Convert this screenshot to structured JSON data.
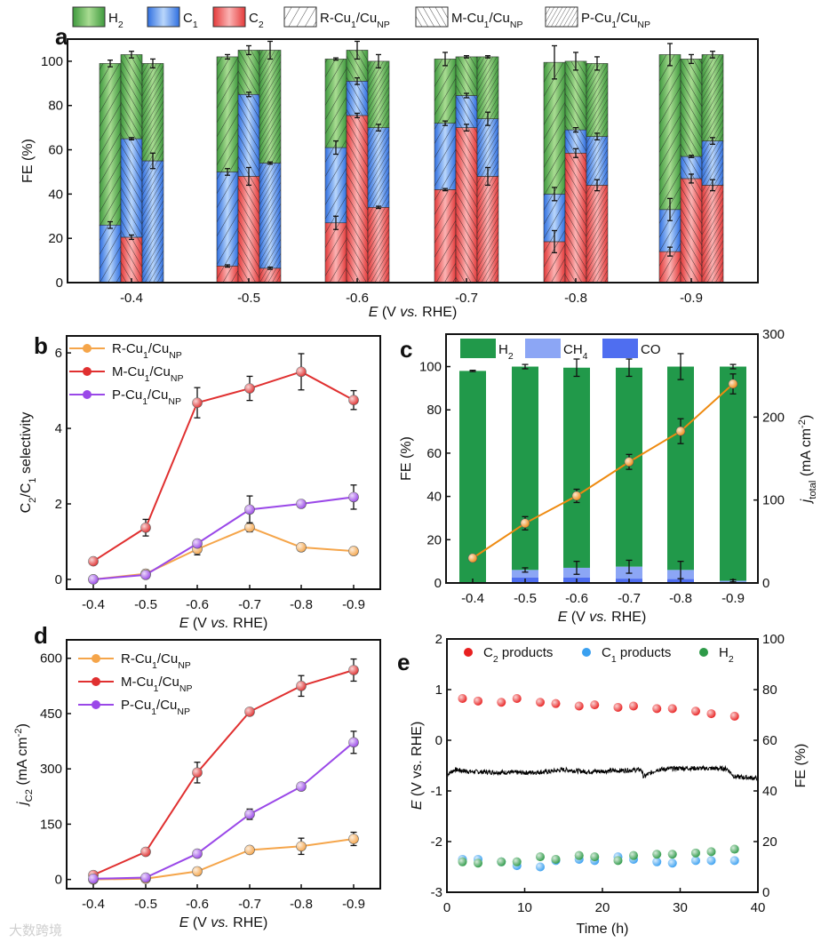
{
  "colors": {
    "H2": "#4ea64a",
    "C1": "#3f7fe0",
    "C2": "#ec4b4b",
    "R": "#f5a54a",
    "M": "#e03030",
    "P": "#9a48e8",
    "c_H2": "#21994a",
    "c_CH4": "#8ca6f5",
    "c_CO": "#4f6ef0",
    "c_line": "#ee8a10",
    "e_C2": "#e82020",
    "e_C1": "#3aa0f0",
    "e_H2": "#2e9a48"
  },
  "watermark": "大数跨境",
  "chart_data": [
    {
      "panel": "a",
      "type": "bar",
      "legend": [
        "H_{2}",
        "C_{1}",
        "C_{2}",
        "R-Cu_{1}/Cu_{NP}",
        "M-Cu_{1}/Cu_{NP}",
        "P-Cu_{1}/Cu_{NP}"
      ],
      "categories": [
        "-0.4",
        "-0.5",
        "-0.6",
        "-0.7",
        "-0.8",
        "-0.9"
      ],
      "xlabel": "E (V vs. RHE)",
      "ylabel": "FE (%)",
      "ylim": [
        0,
        110
      ],
      "yticks": [
        0,
        20,
        40,
        60,
        80,
        100
      ],
      "series": [
        {
          "name": "R-Cu_{1}/Cu_{NP}",
          "C2": [
            0,
            7.5,
            27,
            42,
            18.5,
            14
          ],
          "C1": [
            26,
            42.5,
            34,
            30,
            21.5,
            19
          ],
          "H2": [
            73,
            52,
            40,
            29,
            59.5,
            70
          ],
          "err_C2": [
            0,
            0.5,
            3,
            0.5,
            5,
            2
          ],
          "err_C1": [
            1.5,
            1.5,
            3,
            1,
            3,
            5
          ],
          "err_total": [
            1.5,
            1,
            0.5,
            3,
            7.5,
            5
          ]
        },
        {
          "name": "M-Cu_{1}/Cu_{NP}",
          "C2": [
            20.5,
            48,
            75.5,
            70,
            58.5,
            47
          ],
          "C1": [
            44.5,
            37,
            15.5,
            14.5,
            10.5,
            10
          ],
          "H2": [
            38,
            20,
            14,
            17.5,
            31,
            44
          ],
          "err_C2": [
            1,
            4,
            1,
            1.5,
            2,
            2
          ],
          "err_C1": [
            0.5,
            1,
            1.5,
            1,
            1,
            0.5
          ],
          "err_total": [
            1.5,
            2,
            4,
            0.5,
            4,
            2
          ]
        },
        {
          "name": "P-Cu_{1}/Cu_{NP}",
          "C2": [
            0,
            6.5,
            34,
            48,
            44,
            44
          ],
          "C1": [
            55,
            47.5,
            36,
            26,
            22,
            20
          ],
          "H2": [
            44,
            51,
            30,
            28,
            33,
            39
          ],
          "err_C2": [
            0,
            0.5,
            0.5,
            4,
            2.5,
            2.5
          ],
          "err_C1": [
            3.5,
            0.5,
            1.5,
            3,
            1.5,
            1.5
          ],
          "err_total": [
            2,
            4,
            3,
            0.5,
            3,
            1.5
          ]
        }
      ]
    },
    {
      "panel": "b",
      "type": "line",
      "x": [
        -0.4,
        -0.5,
        -0.6,
        -0.7,
        -0.8,
        -0.9
      ],
      "xticks": [
        "-0.4",
        "-0.5",
        "-0.6",
        "-0.7",
        "-0.8",
        "-0.9"
      ],
      "xlabel": "E (V vs. RHE)",
      "ylabel": "C_{2}/C_{1} selectivity",
      "ylim": [
        -0.26,
        6.45
      ],
      "yticks": [
        0,
        2,
        4,
        6
      ],
      "series": [
        {
          "name": "R-Cu_{1}/Cu_{NP}",
          "values": [
            0,
            0.15,
            0.8,
            1.38,
            0.85,
            0.75
          ],
          "err": [
            0.05,
            0.1,
            0.15,
            0.12,
            0.1,
            0.1
          ]
        },
        {
          "name": "M-Cu_{1}/Cu_{NP}",
          "values": [
            0.48,
            1.37,
            4.68,
            5.06,
            5.5,
            4.75
          ],
          "err": [
            0.08,
            0.22,
            0.4,
            0.32,
            0.48,
            0.25
          ]
        },
        {
          "name": "P-Cu_{1}/Cu_{NP}",
          "values": [
            0,
            0.12,
            0.95,
            1.85,
            2.0,
            2.18
          ],
          "err": [
            0.03,
            0.08,
            0.08,
            0.36,
            0.06,
            0.32
          ]
        }
      ]
    },
    {
      "panel": "c",
      "type": "bar",
      "categories": [
        "-0.4",
        "-0.5",
        "-0.6",
        "-0.7",
        "-0.8",
        "-0.9"
      ],
      "legend": [
        "H_{2}",
        "CH_{4}",
        "CO"
      ],
      "xlabel": "E (V vs. RHE)",
      "ylabel": "FE (%)",
      "ylim": [
        0,
        115
      ],
      "yticks": [
        0,
        20,
        40,
        60,
        80,
        100
      ],
      "y2label": "j_{total} (mA cm^{-2})",
      "y2lim": [
        0,
        300
      ],
      "y2ticks": [
        0,
        100,
        200,
        300
      ],
      "CO": [
        0,
        2.5,
        2.5,
        2,
        1.8,
        0.3
      ],
      "CH4": [
        0,
        3.5,
        4.5,
        5.5,
        4.2,
        0.7
      ],
      "H2": [
        98,
        94,
        92.5,
        92,
        94,
        99
      ],
      "err_total": [
        0.3,
        1,
        4,
        4,
        6,
        1
      ],
      "err_CH4": [
        0,
        1,
        3,
        3,
        4,
        0.5
      ],
      "j_total": [
        30,
        72,
        105,
        146,
        183,
        240
      ],
      "err_j": [
        3,
        8,
        8,
        9,
        15,
        12
      ]
    },
    {
      "panel": "d",
      "type": "line",
      "x": [
        -0.4,
        -0.5,
        -0.6,
        -0.7,
        -0.8,
        -0.9
      ],
      "xticks": [
        "-0.4",
        "-0.5",
        "-0.6",
        "-0.7",
        "-0.8",
        "-0.9"
      ],
      "xlabel": "E (V vs. RHE)",
      "ylabel": "j_{C2} (mA cm^{-2})",
      "ylim": [
        -25,
        650
      ],
      "yticks": [
        0,
        150,
        300,
        450,
        600
      ],
      "series": [
        {
          "name": "R-Cu_{1}/Cu_{NP}",
          "values": [
            0,
            2,
            22,
            80,
            90,
            110
          ],
          "err": [
            5,
            5,
            10,
            10,
            22,
            18
          ]
        },
        {
          "name": "M-Cu_{1}/Cu_{NP}",
          "values": [
            12,
            75,
            290,
            455,
            525,
            568
          ],
          "err": [
            6,
            8,
            28,
            8,
            28,
            30
          ]
        },
        {
          "name": "P-Cu_{1}/Cu_{NP}",
          "values": [
            2,
            5,
            70,
            177,
            252,
            372
          ],
          "err": [
            3,
            3,
            8,
            14,
            10,
            30
          ]
        }
      ]
    },
    {
      "panel": "e",
      "type": "scatter",
      "xlabel": "Time (h)",
      "xlim": [
        0,
        40
      ],
      "xticks": [
        0,
        10,
        20,
        30,
        40
      ],
      "ylabel": "E (V vs. RHE)",
      "ylim": [
        -3,
        2
      ],
      "yticks": [
        -3,
        -2,
        -1,
        0,
        1,
        2
      ],
      "y2label": "FE (%)",
      "y2lim": [
        0,
        100
      ],
      "y2ticks": [
        0,
        20,
        40,
        60,
        80,
        100
      ],
      "time": [
        2,
        4,
        7,
        9,
        12,
        14,
        17,
        19,
        22,
        24,
        27,
        29,
        32,
        34,
        37
      ],
      "series": [
        {
          "name": "C_{2} products",
          "values": [
            76.5,
            75.5,
            75,
            76.5,
            75,
            74.5,
            73.5,
            74,
            73,
            73.5,
            72.5,
            72.5,
            71.5,
            70.5,
            69.5
          ]
        },
        {
          "name": "C_{1} products",
          "values": [
            13,
            13,
            12,
            10.5,
            10,
            12.5,
            13,
            12.5,
            14,
            13,
            12,
            11.5,
            12.5,
            12.5,
            12.5
          ]
        },
        {
          "name": "H_{2}",
          "values": [
            12,
            11.5,
            12,
            12,
            14,
            13,
            14.5,
            14,
            12.5,
            14.5,
            15,
            15,
            15.5,
            16,
            17
          ]
        }
      ],
      "potential_trace": [
        [
          0,
          -0.68
        ],
        [
          1,
          -0.58
        ],
        [
          3,
          -0.62
        ],
        [
          6,
          -0.63
        ],
        [
          10,
          -0.64
        ],
        [
          13,
          -0.62
        ],
        [
          15,
          -0.58
        ],
        [
          18,
          -0.62
        ],
        [
          22,
          -0.6
        ],
        [
          25,
          -0.58
        ],
        [
          25.3,
          -0.72
        ],
        [
          27,
          -0.58
        ],
        [
          30,
          -0.55
        ],
        [
          36,
          -0.56
        ],
        [
          37,
          -0.72
        ],
        [
          40,
          -0.75
        ]
      ]
    }
  ]
}
